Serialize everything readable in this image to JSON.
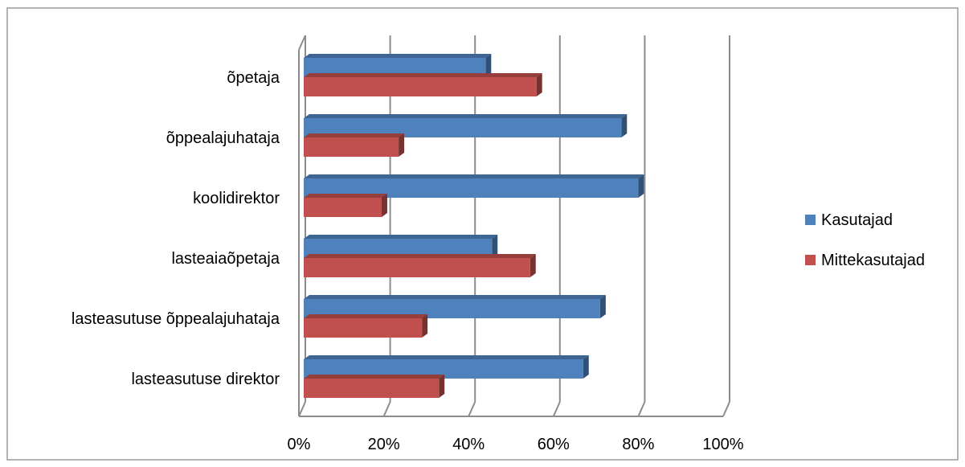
{
  "chart_data": {
    "type": "bar",
    "orientation": "horizontal",
    "style": "3d-clustered",
    "title": "",
    "xlabel": "",
    "ylabel": "",
    "categories": [
      "õpetaja",
      "õppealajuhataja",
      "koolidirektor",
      "lasteaiaõpetaja",
      "lasteasutuse õppealajuhataja",
      "lasteasutuse direktor"
    ],
    "series": [
      {
        "name": "Kasutajad",
        "color": "#4F81BD",
        "values": [
          0.44,
          0.76,
          0.8,
          0.455,
          0.71,
          0.67
        ]
      },
      {
        "name": "Mittekasutajad",
        "color": "#C0504D",
        "values": [
          0.56,
          0.235,
          0.195,
          0.545,
          0.29,
          0.33
        ]
      }
    ],
    "xlim": [
      0,
      1
    ],
    "xticks": [
      "0%",
      "20%",
      "40%",
      "60%",
      "80%",
      "100%"
    ],
    "grid": true,
    "legend_position": "right"
  }
}
